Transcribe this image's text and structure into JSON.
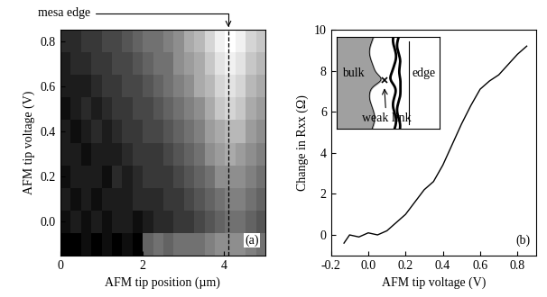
{
  "chart_data": [
    {
      "type": "heatmap",
      "x_label": "AFM tip position (µm)",
      "y_label": "AFM tip voltage (V)",
      "xlim": [
        0,
        5
      ],
      "ylim": [
        -0.15,
        0.85
      ],
      "xticks": [
        0,
        2,
        4
      ],
      "yticks": [
        0.0,
        0.2,
        0.4,
        0.6,
        0.8
      ],
      "color": "gray",
      "cells": [
        [
          0.1,
          0.1,
          0.15,
          0.1,
          0.15,
          0.1,
          0.15,
          0.1,
          0.45,
          0.5,
          0.45,
          0.5,
          0.5,
          0.5,
          0.55,
          0.6,
          0.6,
          0.6,
          0.55,
          0.5
        ],
        [
          0.15,
          0.2,
          0.15,
          0.2,
          0.15,
          0.2,
          0.2,
          0.15,
          0.2,
          0.25,
          0.25,
          0.3,
          0.3,
          0.35,
          0.4,
          0.45,
          0.5,
          0.5,
          0.45,
          0.4
        ],
        [
          0.2,
          0.15,
          0.2,
          0.15,
          0.2,
          0.2,
          0.2,
          0.25,
          0.25,
          0.25,
          0.3,
          0.3,
          0.35,
          0.4,
          0.45,
          0.5,
          0.55,
          0.55,
          0.5,
          0.45
        ],
        [
          0.15,
          0.2,
          0.2,
          0.2,
          0.15,
          0.25,
          0.2,
          0.25,
          0.3,
          0.3,
          0.3,
          0.35,
          0.4,
          0.45,
          0.5,
          0.6,
          0.6,
          0.6,
          0.55,
          0.5
        ],
        [
          0.2,
          0.2,
          0.15,
          0.2,
          0.2,
          0.2,
          0.25,
          0.3,
          0.3,
          0.3,
          0.35,
          0.4,
          0.45,
          0.5,
          0.6,
          0.65,
          0.7,
          0.65,
          0.6,
          0.55
        ],
        [
          0.2,
          0.15,
          0.2,
          0.25,
          0.2,
          0.25,
          0.3,
          0.3,
          0.35,
          0.35,
          0.4,
          0.45,
          0.5,
          0.55,
          0.65,
          0.7,
          0.75,
          0.75,
          0.65,
          0.6
        ],
        [
          0.15,
          0.2,
          0.25,
          0.2,
          0.25,
          0.3,
          0.3,
          0.35,
          0.35,
          0.4,
          0.45,
          0.5,
          0.55,
          0.6,
          0.7,
          0.8,
          0.85,
          0.8,
          0.7,
          0.65
        ],
        [
          0.2,
          0.2,
          0.2,
          0.25,
          0.3,
          0.3,
          0.35,
          0.35,
          0.4,
          0.45,
          0.5,
          0.55,
          0.6,
          0.7,
          0.75,
          0.85,
          0.9,
          0.85,
          0.75,
          0.7
        ],
        [
          0.2,
          0.25,
          0.25,
          0.3,
          0.3,
          0.35,
          0.35,
          0.4,
          0.45,
          0.5,
          0.5,
          0.6,
          0.65,
          0.7,
          0.8,
          0.9,
          0.95,
          0.9,
          0.8,
          0.75
        ],
        [
          0.25,
          0.25,
          0.3,
          0.3,
          0.35,
          0.35,
          0.4,
          0.45,
          0.5,
          0.5,
          0.55,
          0.6,
          0.7,
          0.75,
          0.85,
          0.95,
          1.0,
          0.95,
          0.85,
          0.8
        ]
      ],
      "annotations": [
        {
          "text": "mesa edge",
          "x": 4.1
        },
        {
          "text": "(a)"
        }
      ]
    },
    {
      "type": "line",
      "x_label": "AFM tip voltage (V)",
      "y_label": "Change in Rxx (Ω)",
      "xlim": [
        -0.2,
        0.9
      ],
      "ylim": [
        -1,
        10
      ],
      "xticks": [
        -0.2,
        0.0,
        0.2,
        0.4,
        0.6,
        0.8
      ],
      "yticks": [
        0,
        2,
        4,
        6,
        8,
        10
      ],
      "x": [
        -0.13,
        -0.1,
        -0.05,
        0.0,
        0.05,
        0.1,
        0.15,
        0.2,
        0.25,
        0.3,
        0.35,
        0.4,
        0.45,
        0.5,
        0.55,
        0.6,
        0.65,
        0.7,
        0.75,
        0.8,
        0.85
      ],
      "values": [
        -0.4,
        0.0,
        -0.1,
        0.1,
        0.0,
        0.2,
        0.6,
        1.0,
        1.6,
        2.2,
        2.6,
        3.4,
        4.4,
        5.4,
        6.3,
        7.1,
        7.5,
        7.8,
        8.3,
        8.8,
        9.2
      ],
      "color": "#000000",
      "annotations": [
        {
          "text": "(b)"
        }
      ],
      "inset_labels": [
        "bulk",
        "edge",
        "weak link"
      ]
    }
  ]
}
